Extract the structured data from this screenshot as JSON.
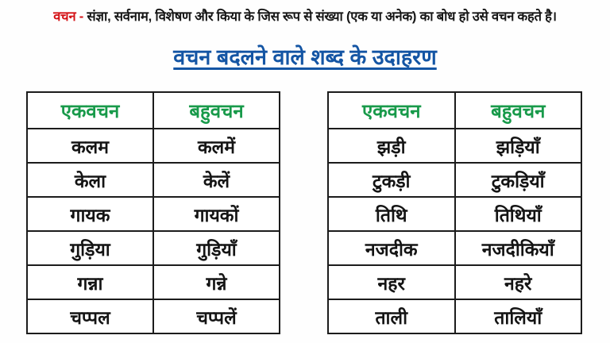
{
  "colors": {
    "term_red": "#d41317",
    "heading_blue": "#1455a4",
    "header_green": "#189a4a",
    "text_black": "#151515",
    "table_border": "#1c1c1c",
    "background": "#fefefe"
  },
  "topline": {
    "term": "वचन -",
    "definition": " संज्ञा, सर्वनाम, विशेषण और किया के जिस रूप से संख्या (एक या अनेक) का बोध हो उसे वचन कहते है।"
  },
  "heading": {
    "title": "वचन बदलने वाले शब्द के उदाहरण"
  },
  "tables": [
    {
      "headers": {
        "singular": "एकवचन",
        "plural": "बहुवचन"
      },
      "rows": [
        {
          "singular": "कलम",
          "plural": "कलमें"
        },
        {
          "singular": "केला",
          "plural": "केलें"
        },
        {
          "singular": "गायक",
          "plural": "गायकों"
        },
        {
          "singular": "गुड़िया",
          "plural": "गुड़ियाँ"
        },
        {
          "singular": "गन्ना",
          "plural": "गन्ने"
        },
        {
          "singular": "चप्पल",
          "plural": "चप्पलें"
        }
      ]
    },
    {
      "headers": {
        "singular": "एकवचन",
        "plural": "बहुवचन"
      },
      "rows": [
        {
          "singular": "झड़ी",
          "plural": "झड़ियाँ"
        },
        {
          "singular": "टुकड़ी",
          "plural": "टुकड़ियाँ"
        },
        {
          "singular": "तिथि",
          "plural": "तिथियाँ"
        },
        {
          "singular": "नजदीक",
          "plural": "नजदीकियाँ"
        },
        {
          "singular": "नहर",
          "plural": "नहरे"
        },
        {
          "singular": "ताली",
          "plural": "तालियाँ"
        }
      ]
    }
  ]
}
